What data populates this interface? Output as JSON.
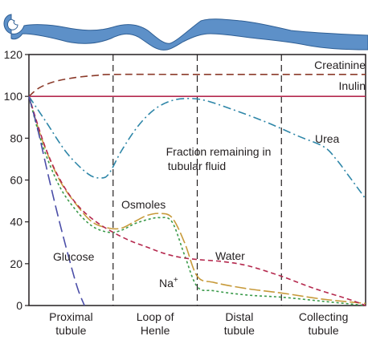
{
  "chart_data": {
    "type": "line",
    "title": "",
    "xlabel": "",
    "ylabel": "",
    "ylim": [
      0,
      120
    ],
    "yticks": [
      0,
      20,
      40,
      60,
      80,
      100,
      120
    ],
    "grid": false,
    "legend": "none",
    "x_domain": [
      0,
      4
    ],
    "segments": [
      {
        "label": "Proximal\ntubule",
        "lines": [
          "Proximal",
          "tubule"
        ],
        "start": 0,
        "end": 1
      },
      {
        "label": "Loop of\nHenle",
        "lines": [
          "Loop of",
          "Henle"
        ],
        "start": 1,
        "end": 2
      },
      {
        "label": "Distal\ntubule",
        "lines": [
          "Distal",
          "tubule"
        ],
        "start": 2,
        "end": 3
      },
      {
        "label": "Collecting\ntubule",
        "lines": [
          "Collecting",
          "tubule"
        ],
        "start": 3,
        "end": 4
      }
    ],
    "boundaries": [
      1,
      2,
      3
    ],
    "annotations": {
      "fraction_line1": "Fraction remaining in",
      "fraction_line2": "tubular fluid",
      "na_base": "Na",
      "na_sup": "+"
    },
    "series": [
      {
        "name": "Creatinine",
        "color": "#8b3a2a",
        "dash": "9,5",
        "points": [
          [
            0,
            100
          ],
          [
            0.12,
            104
          ],
          [
            0.3,
            107
          ],
          [
            0.55,
            109
          ],
          [
            0.8,
            110
          ],
          [
            1,
            110.5
          ],
          [
            2,
            110.5
          ],
          [
            3,
            110.5
          ],
          [
            4,
            110.5
          ]
        ]
      },
      {
        "name": "Inulin",
        "color": "#b5294e",
        "dash": "",
        "points": [
          [
            0,
            100
          ],
          [
            4,
            100
          ]
        ]
      },
      {
        "name": "Urea",
        "color": "#2e86a8",
        "dash": "10,4,2,4",
        "points": [
          [
            0,
            100
          ],
          [
            0.2,
            88
          ],
          [
            0.45,
            73
          ],
          [
            0.7,
            63
          ],
          [
            0.85,
            61
          ],
          [
            0.95,
            63
          ],
          [
            1.1,
            74
          ],
          [
            1.3,
            86
          ],
          [
            1.5,
            94
          ],
          [
            1.7,
            98
          ],
          [
            1.9,
            99
          ],
          [
            2.1,
            98
          ],
          [
            2.4,
            94
          ],
          [
            2.8,
            88
          ],
          [
            3.2,
            81
          ],
          [
            3.5,
            76
          ],
          [
            3.65,
            70
          ],
          [
            3.8,
            62
          ],
          [
            4,
            51
          ]
        ]
      },
      {
        "name": "Osmoles",
        "color": "#c79a3a",
        "dash": "14,4",
        "points": [
          [
            0,
            100
          ],
          [
            0.15,
            80
          ],
          [
            0.35,
            61
          ],
          [
            0.55,
            49
          ],
          [
            0.75,
            40
          ],
          [
            0.95,
            37
          ],
          [
            1.1,
            37
          ],
          [
            1.25,
            40
          ],
          [
            1.4,
            43
          ],
          [
            1.55,
            44
          ],
          [
            1.7,
            42
          ],
          [
            1.85,
            30
          ],
          [
            2,
            14
          ],
          [
            2.2,
            11
          ],
          [
            2.6,
            8
          ],
          [
            3,
            6
          ],
          [
            3.5,
            3
          ],
          [
            4,
            1
          ]
        ]
      },
      {
        "name": "Na+",
        "color": "#3a9a4a",
        "dash": "3,3",
        "points": [
          [
            0,
            100
          ],
          [
            0.15,
            78
          ],
          [
            0.35,
            58
          ],
          [
            0.55,
            46
          ],
          [
            0.75,
            38
          ],
          [
            0.95,
            35
          ],
          [
            1.1,
            36
          ],
          [
            1.25,
            39
          ],
          [
            1.4,
            41
          ],
          [
            1.55,
            42
          ],
          [
            1.7,
            40
          ],
          [
            1.85,
            24
          ],
          [
            2,
            9
          ],
          [
            2.2,
            7
          ],
          [
            2.6,
            5
          ],
          [
            3,
            4
          ],
          [
            3.5,
            2
          ],
          [
            4,
            0
          ]
        ]
      },
      {
        "name": "Water",
        "color": "#b5294e",
        "dash": "6,4",
        "points": [
          [
            0,
            100
          ],
          [
            0.2,
            75
          ],
          [
            0.4,
            58
          ],
          [
            0.6,
            47
          ],
          [
            0.8,
            40
          ],
          [
            1,
            35
          ],
          [
            1.2,
            31
          ],
          [
            1.4,
            28
          ],
          [
            1.6,
            25
          ],
          [
            1.8,
            23
          ],
          [
            2,
            22
          ],
          [
            2.3,
            21
          ],
          [
            2.6,
            19
          ],
          [
            3,
            14
          ],
          [
            3.4,
            8
          ],
          [
            3.8,
            3
          ],
          [
            4,
            0
          ]
        ]
      },
      {
        "name": "Glucose",
        "color": "#4b4ea8",
        "dash": "14,6",
        "points": [
          [
            0,
            100
          ],
          [
            0.1,
            85
          ],
          [
            0.22,
            64
          ],
          [
            0.35,
            42
          ],
          [
            0.48,
            22
          ],
          [
            0.58,
            8
          ],
          [
            0.66,
            0
          ]
        ]
      }
    ]
  }
}
